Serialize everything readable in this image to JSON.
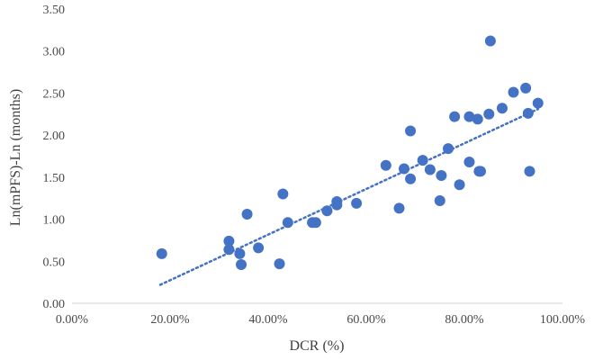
{
  "chart_data": {
    "type": "scatter",
    "title": "",
    "xlabel": "DCR (%)",
    "ylabel": "Ln(mPFS)-Ln (months)",
    "xlim": [
      0,
      1
    ],
    "ylim": [
      0,
      3.5
    ],
    "x_ticks": [
      0,
      0.2,
      0.4,
      0.6,
      0.8,
      1.0
    ],
    "x_tick_labels": [
      "0.00%",
      "20.00%",
      "40.00%",
      "60.00%",
      "80.00%",
      "100.00%"
    ],
    "y_ticks": [
      0,
      0.5,
      1.0,
      1.5,
      2.0,
      2.5,
      3.0,
      3.5
    ],
    "y_tick_labels": [
      "0.00",
      "0.50",
      "1.00",
      "1.50",
      "2.00",
      "2.50",
      "3.00",
      "3.50"
    ],
    "grid": false,
    "marker_color": "#4472c4",
    "trendline": {
      "style": "dotted",
      "x": [
        0.18,
        0.95
      ],
      "y": [
        0.22,
        2.31
      ]
    },
    "series": [
      {
        "x": [
          0.183,
          0.32,
          0.32,
          0.342,
          0.345,
          0.357,
          0.38,
          0.423,
          0.43,
          0.44,
          0.49,
          0.497,
          0.52,
          0.54,
          0.54,
          0.58,
          0.64,
          0.667,
          0.677,
          0.69,
          0.69,
          0.715,
          0.73,
          0.753,
          0.75,
          0.767,
          0.78,
          0.79,
          0.81,
          0.81,
          0.83,
          0.833,
          0.827,
          0.85,
          0.853,
          0.877,
          0.9,
          0.925,
          0.93,
          0.933,
          0.95
        ],
        "y": [
          0.59,
          0.74,
          0.64,
          0.59,
          0.46,
          1.06,
          0.66,
          0.47,
          1.3,
          0.96,
          0.96,
          0.96,
          1.1,
          1.21,
          1.17,
          1.19,
          1.64,
          1.13,
          1.6,
          2.05,
          1.48,
          1.7,
          1.59,
          1.52,
          1.22,
          1.84,
          2.22,
          1.41,
          2.22,
          1.68,
          1.57,
          1.57,
          2.19,
          2.25,
          3.12,
          2.32,
          2.51,
          2.56,
          2.26,
          1.57,
          2.38
        ]
      }
    ]
  }
}
